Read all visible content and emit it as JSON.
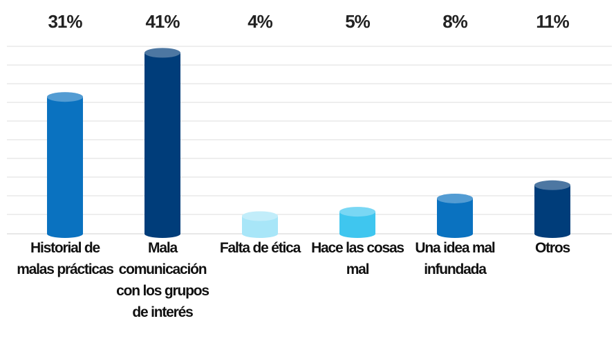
{
  "chart_data": {
    "type": "bar",
    "categories": [
      "Historial de malas prácticas",
      "Mala comunicación con los grupos de interés",
      "Falta de ética",
      "Hace las cosas mal",
      "Una idea mal infundada",
      "Otros"
    ],
    "values": [
      31,
      41,
      4,
      5,
      8,
      11
    ],
    "value_labels": [
      "31%",
      "41%",
      "4%",
      "5%",
      "8%",
      "11%"
    ],
    "colors": [
      "#0a72c0",
      "#003d7a",
      "#a8e6f8",
      "#3fc6ef",
      "#0a72c0",
      "#003d7a"
    ],
    "ylim": [
      0,
      42
    ]
  }
}
